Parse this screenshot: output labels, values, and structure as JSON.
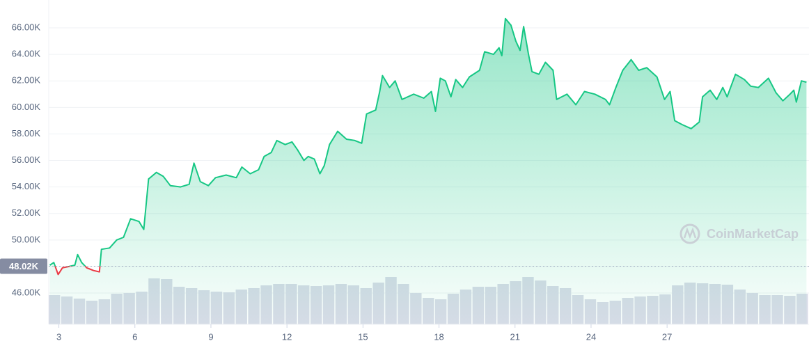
{
  "chart_data": {
    "type": "area",
    "watermark": "CoinMarketCap",
    "x": [
      2.64,
      2.8,
      2.97,
      3.14,
      3.4,
      3.63,
      3.74,
      3.9,
      4.1,
      4.37,
      4.6,
      4.68,
      5.0,
      5.28,
      5.55,
      5.83,
      6.16,
      6.35,
      6.54,
      6.85,
      7.12,
      7.4,
      7.8,
      8.14,
      8.33,
      8.58,
      8.9,
      9.18,
      9.6,
      10.0,
      10.22,
      10.55,
      10.88,
      11.1,
      11.38,
      11.6,
      11.93,
      12.2,
      12.42,
      12.67,
      12.84,
      13.08,
      13.3,
      13.47,
      13.68,
      14.0,
      14.35,
      14.68,
      14.95,
      15.14,
      15.5,
      15.66,
      15.77,
      16.05,
      16.27,
      16.54,
      17.0,
      17.4,
      17.7,
      17.86,
      18.05,
      18.25,
      18.47,
      18.66,
      18.93,
      19.2,
      19.6,
      19.8,
      20.15,
      20.37,
      20.48,
      20.62,
      20.84,
      21.03,
      21.2,
      21.34,
      21.53,
      21.67,
      21.94,
      22.2,
      22.5,
      22.64,
      23.05,
      23.4,
      23.74,
      24.15,
      24.57,
      24.73,
      24.98,
      25.25,
      25.58,
      25.88,
      26.2,
      26.6,
      26.9,
      27.12,
      27.3,
      27.6,
      27.95,
      28.27,
      28.4,
      28.7,
      28.96,
      29.2,
      29.37,
      29.7,
      30.05,
      30.3,
      30.6,
      31.0,
      31.3,
      31.57,
      31.85,
      32.0,
      32.1,
      32.3,
      32.5
    ],
    "series": [
      {
        "color": "#16c784",
        "values": [
          48100,
          48300,
          47400,
          47900,
          48000,
          48100,
          48900,
          48300,
          47900,
          47700,
          47600,
          49300,
          49400,
          50000,
          50200,
          51600,
          51400,
          50800,
          54600,
          55100,
          54800,
          54100,
          54000,
          54200,
          55800,
          54400,
          54100,
          54700,
          54900,
          54700,
          55500,
          55000,
          55300,
          56300,
          56600,
          57500,
          57200,
          57400,
          56800,
          56000,
          56300,
          56100,
          55000,
          55600,
          57200,
          58200,
          57600,
          57500,
          57300,
          59500,
          59800,
          61200,
          62400,
          61500,
          62000,
          60600,
          61000,
          60700,
          61200,
          59700,
          62200,
          62000,
          60800,
          62100,
          61500,
          62300,
          62800,
          64200,
          64000,
          64500,
          63900,
          66700,
          66200,
          65000,
          64300,
          66100,
          64000,
          62700,
          62500,
          63400,
          62800,
          60600,
          61000,
          60200,
          61200,
          61000,
          60600,
          60200,
          61500,
          62800,
          63600,
          62800,
          63000,
          62300,
          60600,
          61200,
          59000,
          58700,
          58400,
          58900,
          60800,
          61300,
          60600,
          61500,
          60800,
          62500,
          62100,
          61600,
          61500,
          62200,
          61100,
          60500,
          61000,
          61300,
          60400,
          62000,
          61900
        ]
      }
    ],
    "below_color": "#ea3943",
    "baseline": {
      "value": 48020,
      "label": "48.02K"
    },
    "xlim": [
      2.6,
      32.6
    ],
    "xticks": [
      3,
      6,
      9,
      12,
      15,
      18,
      21,
      24,
      27
    ],
    "ylim": [
      43640,
      68100
    ],
    "yticks": [
      {
        "value": 46000,
        "label": "46.00K"
      },
      {
        "value": 48000,
        "label": "48.00K"
      },
      {
        "value": 50000,
        "label": "50.00K"
      },
      {
        "value": 52000,
        "label": "52.00K"
      },
      {
        "value": 54000,
        "label": "54.00K"
      },
      {
        "value": 56000,
        "label": "56.00K"
      },
      {
        "value": 58000,
        "label": "58.00K"
      },
      {
        "value": 60000,
        "label": "60.00K"
      },
      {
        "value": 62000,
        "label": "62.00K"
      },
      {
        "value": 64000,
        "label": "64.00K"
      },
      {
        "value": 66000,
        "label": "66.00K"
      }
    ],
    "grid": true,
    "volume": {
      "color": "#d9dce8",
      "values": [
        42,
        40,
        37,
        34,
        36,
        44,
        45,
        47,
        66,
        65,
        54,
        52,
        49,
        47,
        46,
        50,
        52,
        56,
        58,
        58,
        56,
        55,
        56,
        58,
        56,
        52,
        60,
        68,
        58,
        45,
        38,
        36,
        44,
        50,
        54,
        54,
        58,
        62,
        68,
        63,
        55,
        52,
        42,
        36,
        32,
        34,
        38,
        40,
        41,
        43,
        56,
        60,
        59,
        58,
        57,
        50,
        45,
        42,
        42,
        41,
        44
      ]
    }
  }
}
